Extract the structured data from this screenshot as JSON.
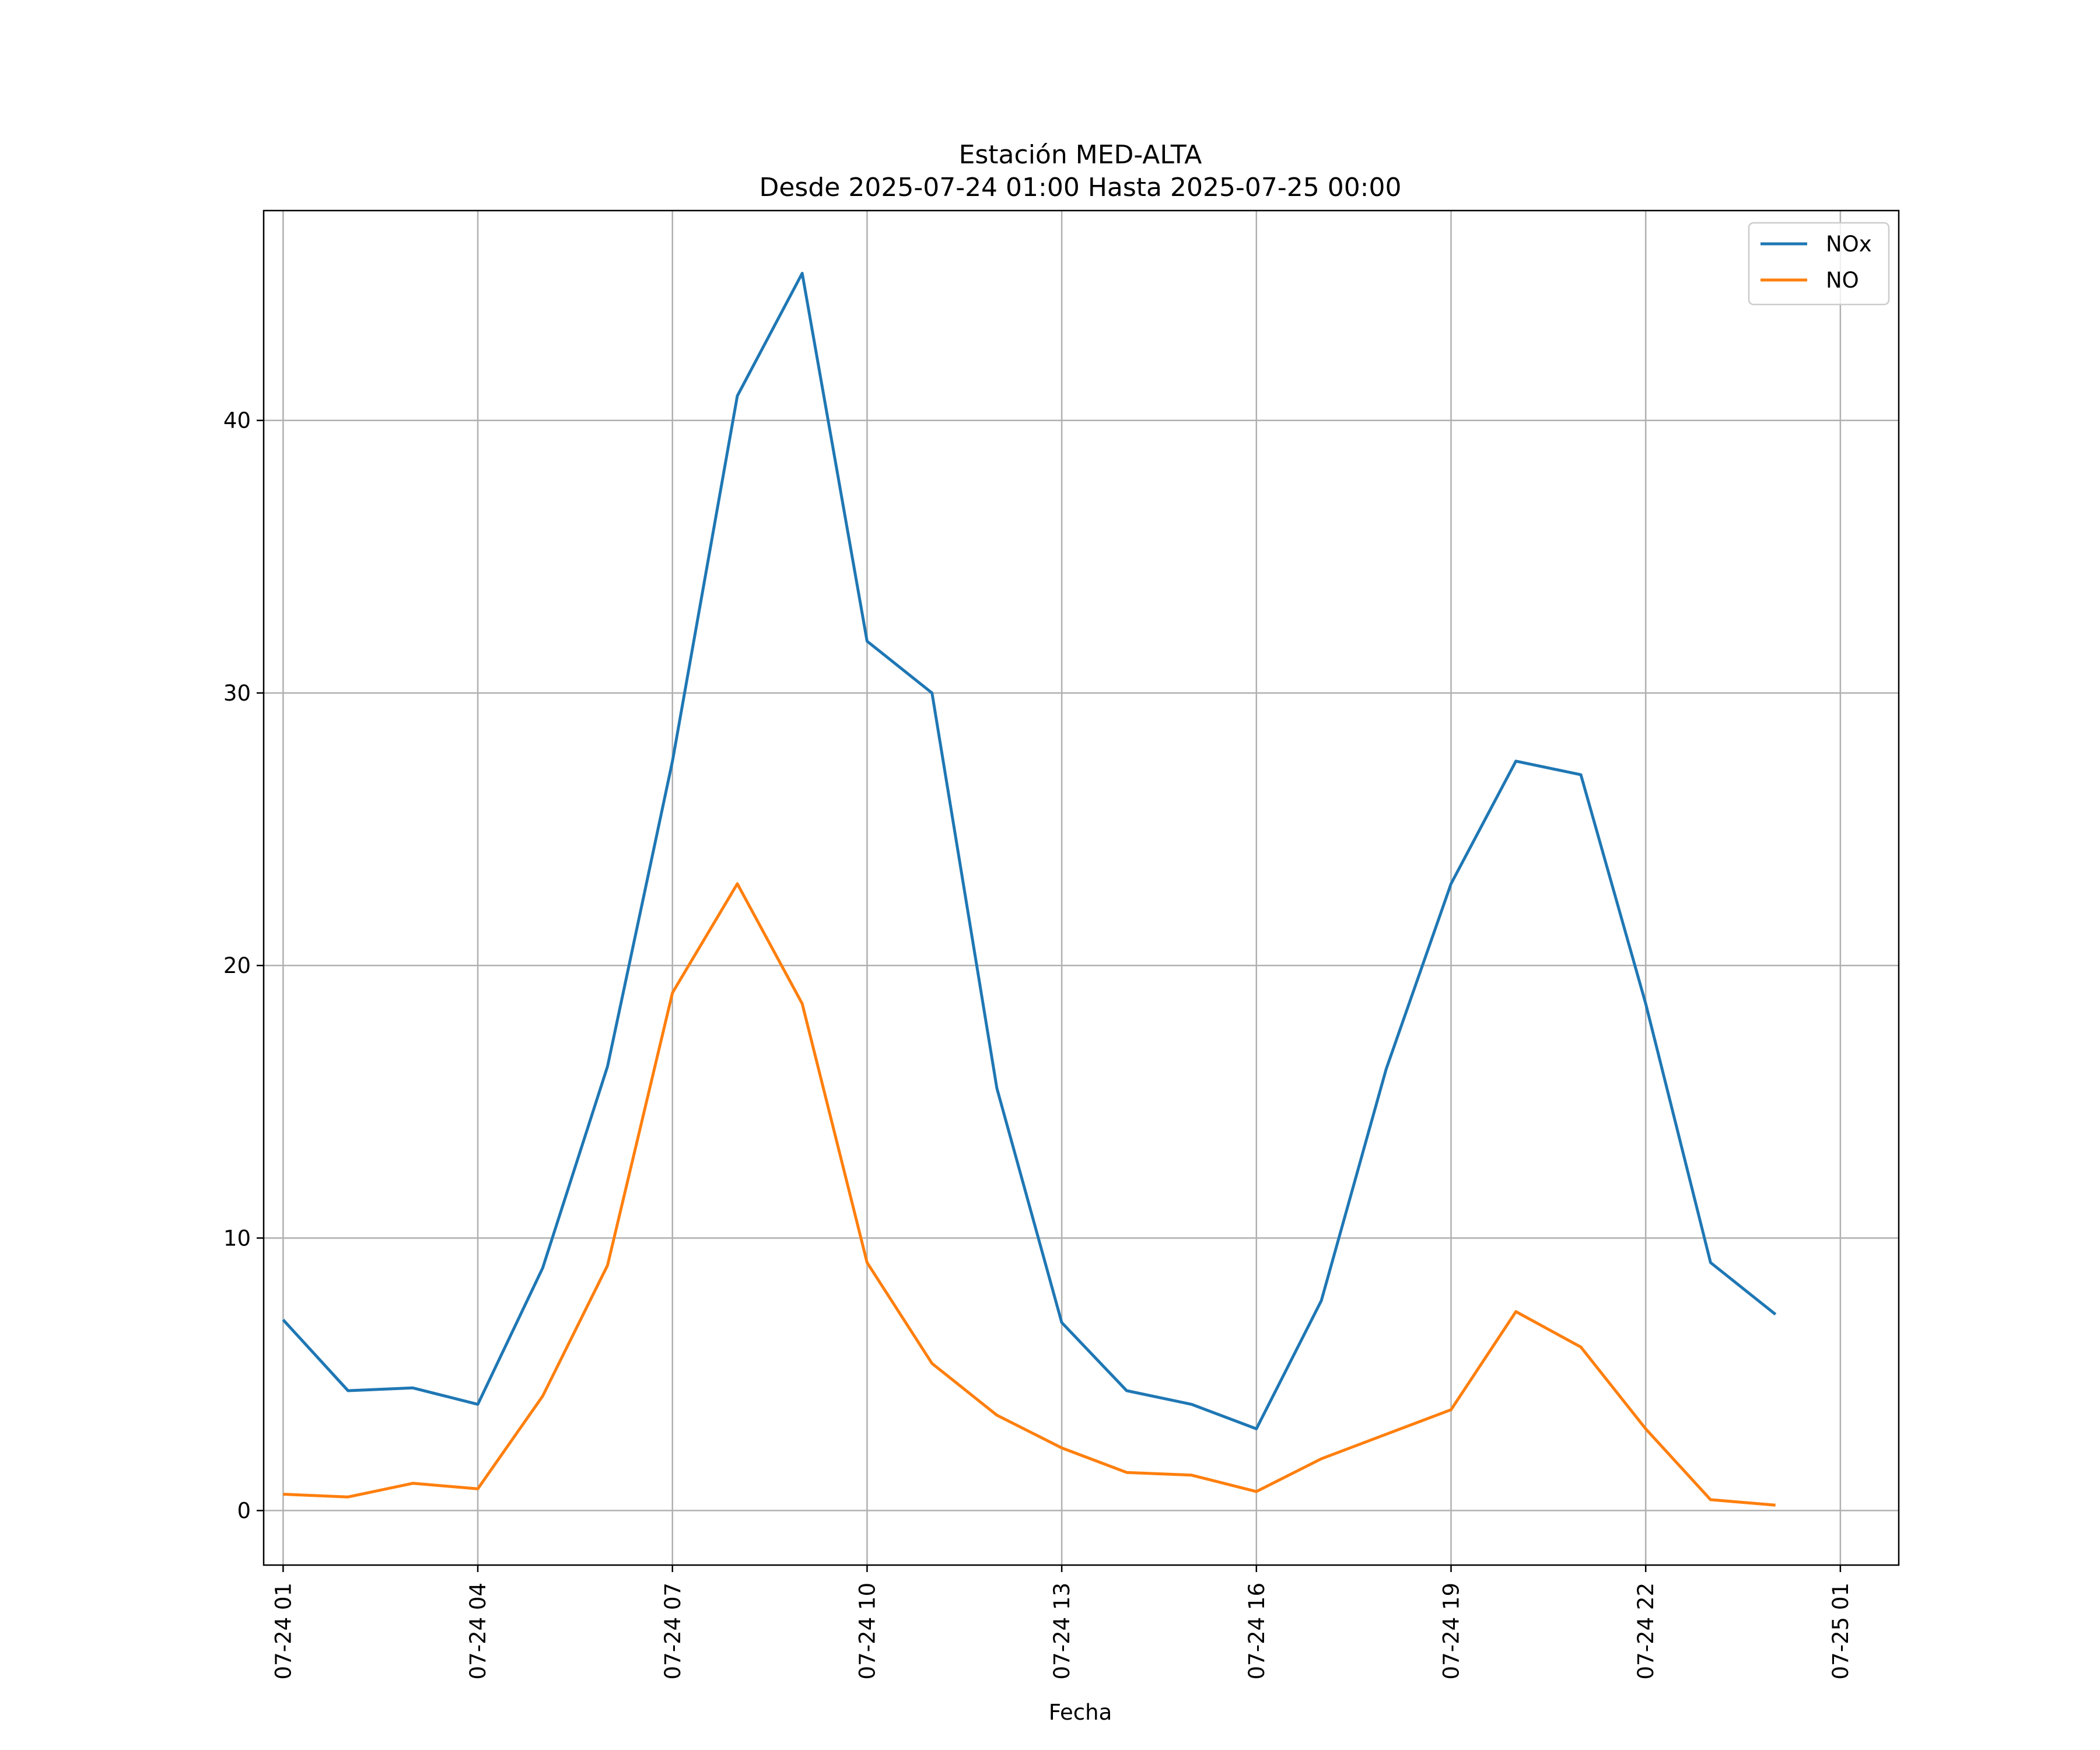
{
  "chart_data": {
    "type": "line",
    "title": "Estación MED-ALTA",
    "subtitle": "Desde 2025-07-24 01:00 Hasta 2025-07-25 00:00",
    "xlabel": "Fecha",
    "ylabel": "",
    "x": [
      "2025-07-24 01:00",
      "2025-07-24 02:00",
      "2025-07-24 03:00",
      "2025-07-24 04:00",
      "2025-07-24 05:00",
      "2025-07-24 06:00",
      "2025-07-24 07:00",
      "2025-07-24 08:00",
      "2025-07-24 09:00",
      "2025-07-24 10:00",
      "2025-07-24 11:00",
      "2025-07-24 12:00",
      "2025-07-24 13:00",
      "2025-07-24 14:00",
      "2025-07-24 15:00",
      "2025-07-24 16:00",
      "2025-07-24 17:00",
      "2025-07-24 18:00",
      "2025-07-24 19:00",
      "2025-07-24 20:00",
      "2025-07-24 21:00",
      "2025-07-24 22:00",
      "2025-07-24 23:00",
      "2025-07-25 00:00"
    ],
    "xlim": [
      "2025-07-23 24:00 approx",
      "2025-07-25 01:00 approx"
    ],
    "x_ticks": [
      "07-24 01",
      "07-24 04",
      "07-24 07",
      "07-24 10",
      "07-24 13",
      "07-24 16",
      "07-24 19",
      "07-24 22",
      "07-25 01"
    ],
    "y_ticks": [
      "0",
      "10",
      "20",
      "30",
      "40"
    ],
    "ylim": [
      -2,
      47.7
    ],
    "grid": true,
    "legend_position": "top-right",
    "series": [
      {
        "name": "NOx",
        "color": "#1f77b4",
        "values": [
          7.0,
          4.4,
          4.5,
          3.9,
          8.9,
          16.3,
          27.5,
          40.9,
          45.4,
          31.9,
          30.0,
          15.5,
          6.9,
          4.4,
          3.9,
          3.0,
          7.7,
          16.2,
          23.0,
          27.5,
          27.0,
          18.6,
          9.1,
          7.2
        ]
      },
      {
        "name": "NO",
        "color": "#ff7f0e",
        "values": [
          0.6,
          0.5,
          1.0,
          0.8,
          4.2,
          9.0,
          19.0,
          23.0,
          18.6,
          9.1,
          5.4,
          3.5,
          2.3,
          1.4,
          1.3,
          0.7,
          1.9,
          2.8,
          3.7,
          7.3,
          6.0,
          3.0,
          0.4,
          0.2
        ]
      }
    ]
  }
}
